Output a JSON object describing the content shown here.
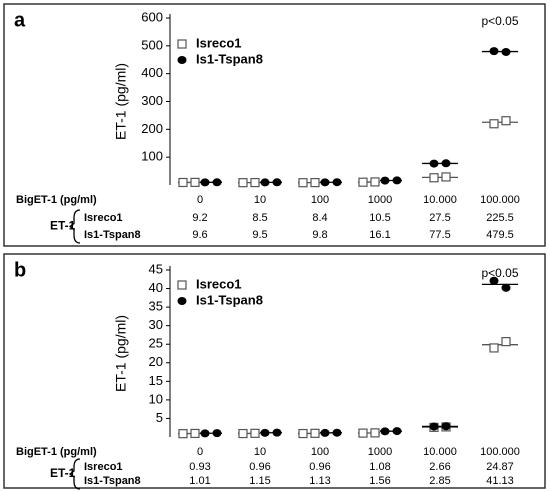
{
  "chart_data": [
    {
      "type": "dot",
      "panel": "a",
      "y_label": "ET-1 (pg/ml)",
      "annotation": "p<0.05",
      "x_label": "BigET-1 (pg/ml)",
      "row_group_label": "ET-1",
      "categories": [
        "0",
        "10",
        "100",
        "1000",
        "10.000",
        "100.000"
      ],
      "ylim": [
        0,
        600
      ],
      "yticks": [
        100,
        200,
        300,
        400,
        500,
        600
      ],
      "series": [
        {
          "name": "Isreco1",
          "color": "#555555",
          "marker": "square",
          "values": [
            9.2,
            8.5,
            8.4,
            10.5,
            27.5,
            225.5
          ],
          "points": [
            [
              9,
              9.4
            ],
            [
              8.3,
              8.7
            ],
            [
              8.2,
              8.6
            ],
            [
              10,
              11
            ],
            [
              26,
              29
            ],
            [
              220,
              231
            ]
          ]
        },
        {
          "name": "Is1-Tspan8",
          "color": "#000000",
          "marker": "circle",
          "values": [
            9.6,
            9.5,
            9.8,
            16.1,
            77.5,
            479.5
          ],
          "points": [
            [
              9.4,
              9.8
            ],
            [
              9.3,
              9.7
            ],
            [
              9.6,
              10
            ],
            [
              15.8,
              16.4
            ],
            [
              77,
              78
            ],
            [
              481,
              478
            ]
          ]
        }
      ]
    },
    {
      "type": "dot",
      "panel": "b",
      "y_label": "ET-1 (pg/ml)",
      "annotation": "p<0.05",
      "x_label": "BigET-1 (pg/ml)",
      "row_group_label": "ET-1",
      "categories": [
        "0",
        "10",
        "100",
        "1000",
        "10.000",
        "100.000"
      ],
      "ylim": [
        0,
        45
      ],
      "yticks": [
        5,
        10,
        15,
        20,
        25,
        30,
        35,
        40,
        45
      ],
      "series": [
        {
          "name": "Isreco1",
          "color": "#555555",
          "marker": "square",
          "values": [
            0.93,
            0.96,
            0.96,
            1.08,
            2.66,
            24.87
          ],
          "points": [
            [
              0.9,
              0.96
            ],
            [
              0.93,
              0.99
            ],
            [
              0.93,
              0.99
            ],
            [
              1.05,
              1.11
            ],
            [
              2.6,
              2.72
            ],
            [
              24,
              25.7
            ]
          ]
        },
        {
          "name": "Is1-Tspan8",
          "color": "#000000",
          "marker": "circle",
          "values": [
            1.01,
            1.15,
            1.13,
            1.56,
            2.85,
            41.13
          ],
          "points": [
            [
              0.98,
              1.04
            ],
            [
              1.12,
              1.18
            ],
            [
              1.1,
              1.16
            ],
            [
              1.53,
              1.59
            ],
            [
              2.8,
              2.9
            ],
            [
              42.1,
              40.2
            ]
          ]
        }
      ]
    }
  ]
}
